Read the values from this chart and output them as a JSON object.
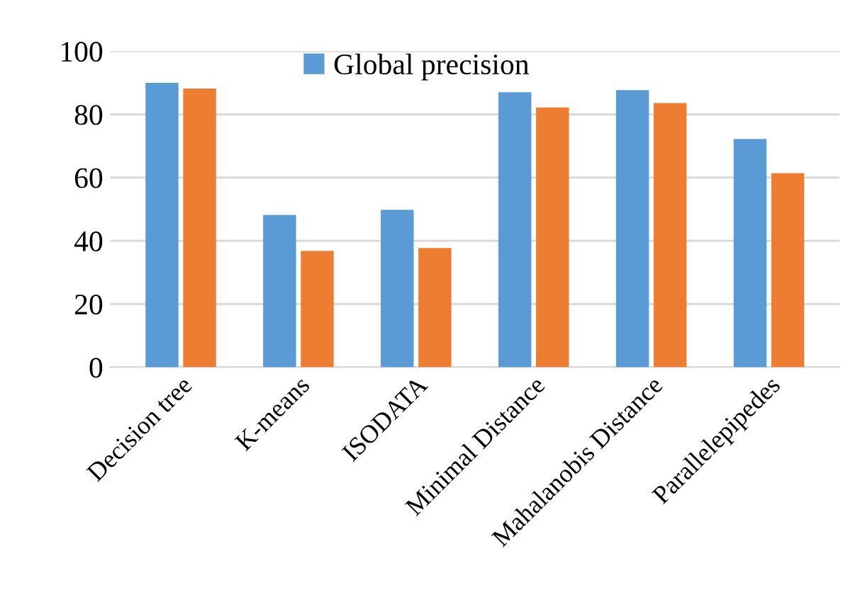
{
  "chart_data": {
    "type": "bar",
    "categories": [
      "Decision tree",
      "K-means",
      "ISODATA",
      "Minimal Distance",
      "Mahalanobis Distance",
      "Parallelepipedes"
    ],
    "series": [
      {
        "name": "Global precision",
        "color": "#5b9bd5",
        "values": [
          90.0,
          48.2,
          49.8,
          87.0,
          87.7,
          72.2
        ]
      },
      {
        "color": "#ed7d31",
        "values": [
          88.2,
          36.8,
          37.7,
          82.2,
          83.6,
          61.4
        ]
      }
    ],
    "ylim": [
      0,
      100
    ],
    "yticks": [
      0,
      20,
      40,
      60,
      80,
      100
    ],
    "grid": "y",
    "legend": "top"
  }
}
